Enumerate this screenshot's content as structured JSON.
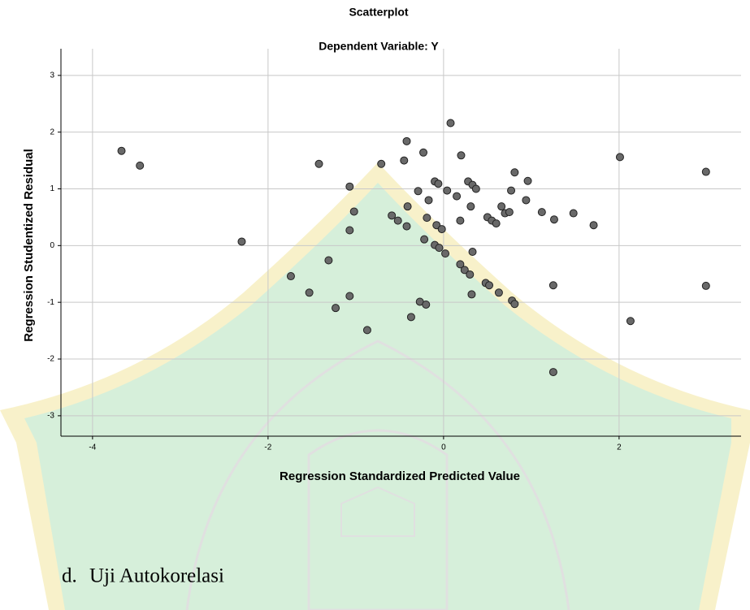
{
  "chart_data": {
    "type": "scatter",
    "title": "Scatterplot",
    "subtitle": "Dependent Variable: Y",
    "x_label": "Regression Standardized Predicted Value",
    "y_label": "Regression Studentized Residual",
    "x": [
      -3.67,
      -3.46,
      -2.3,
      -1.74,
      -1.53,
      -1.42,
      -1.31,
      -1.23,
      -1.07,
      -1.07,
      -1.07,
      -1.02,
      -0.87,
      -0.71,
      -0.59,
      -0.52,
      -0.45,
      -0.42,
      -0.42,
      -0.41,
      -0.37,
      -0.29,
      -0.27,
      -0.23,
      -0.22,
      -0.2,
      -0.19,
      -0.17,
      -0.1,
      -0.1,
      -0.08,
      -0.06,
      -0.05,
      -0.02,
      0.02,
      0.04,
      0.08,
      0.15,
      0.19,
      0.19,
      0.2,
      0.24,
      0.28,
      0.3,
      0.31,
      0.33,
      0.33,
      0.32,
      0.37,
      0.48,
      0.5,
      0.52,
      0.55,
      0.6,
      0.63,
      0.66,
      0.7,
      0.75,
      0.77,
      0.78,
      0.81,
      0.81,
      0.94,
      0.96,
      1.12,
      1.25,
      1.25,
      1.26,
      1.48,
      1.71,
      2.01,
      2.13,
      2.99,
      2.99
    ],
    "values": [
      1.67,
      1.41,
      0.07,
      -0.54,
      -0.83,
      1.44,
      -0.26,
      -1.1,
      1.04,
      0.27,
      -0.89,
      0.6,
      -1.49,
      1.44,
      0.53,
      0.44,
      1.5,
      1.84,
      0.34,
      0.69,
      -1.26,
      0.96,
      -0.99,
      1.64,
      0.11,
      -1.04,
      0.49,
      0.8,
      1.13,
      0.01,
      0.36,
      1.09,
      -0.04,
      0.29,
      -0.14,
      0.97,
      2.16,
      0.87,
      -0.33,
      0.44,
      1.59,
      -0.43,
      1.13,
      -0.51,
      0.69,
      1.07,
      -0.11,
      -0.86,
      1.0,
      -0.66,
      0.5,
      -0.7,
      0.44,
      0.39,
      -0.83,
      0.69,
      0.57,
      0.59,
      0.97,
      -0.97,
      -1.03,
      1.29,
      0.8,
      1.14,
      0.59,
      -0.7,
      -2.23,
      0.46,
      0.57,
      0.36,
      1.56,
      -1.33,
      1.3,
      -0.71
    ],
    "color": "#696969",
    "xlim": [
      -4.36,
      3.39
    ],
    "xticks": [
      -4,
      -2,
      0,
      2
    ],
    "ylim": [
      -3.36,
      3.47
    ],
    "yticks": [
      -3,
      -2,
      -1,
      0,
      1,
      2,
      3
    ],
    "grid": true
  },
  "caption": {
    "marker": "d.",
    "text": "Uji Autokorelasi"
  }
}
